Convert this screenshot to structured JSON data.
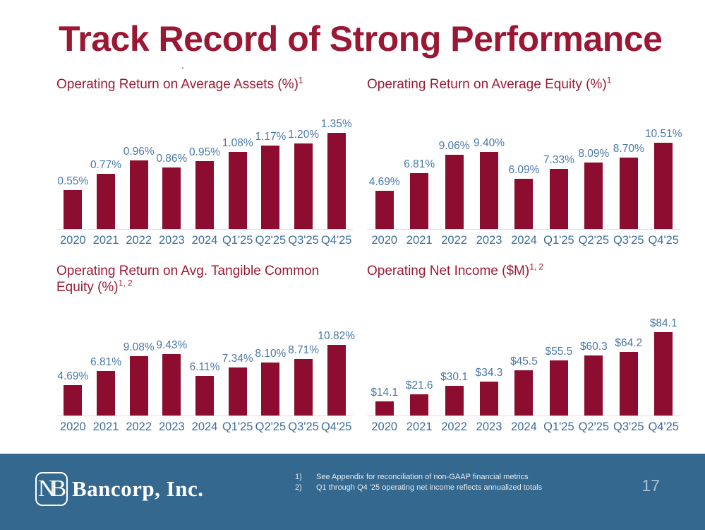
{
  "slide": {
    "title": "Track Record of Strong Performance",
    "stray_dot": "."
  },
  "chart_data": [
    {
      "type": "bar",
      "title": "Operating Return on Average Assets (%)",
      "title_sup": "1",
      "categories": [
        "2020",
        "2021",
        "2022",
        "2023",
        "2024",
        "Q1'25",
        "Q2'25",
        "Q3'25",
        "Q4'25"
      ],
      "values": [
        0.55,
        0.77,
        0.96,
        0.86,
        0.95,
        1.08,
        1.17,
        1.2,
        1.35
      ],
      "labels": [
        "0.55%",
        "0.77%",
        "0.96%",
        "0.86%",
        "0.95%",
        "1.08%",
        "1.17%",
        "1.20%",
        "1.35%"
      ],
      "xlabel": "",
      "ylabel": "",
      "ylim": [
        0,
        1.5
      ],
      "grid": false,
      "legend": false
    },
    {
      "type": "bar",
      "title": "Operating Return on Average Equity (%)",
      "title_sup": "1",
      "categories": [
        "2020",
        "2021",
        "2022",
        "2023",
        "2024",
        "Q1'25",
        "Q2'25",
        "Q3'25",
        "Q4'25"
      ],
      "values": [
        4.69,
        6.81,
        9.06,
        9.4,
        6.09,
        7.33,
        8.09,
        8.7,
        10.51
      ],
      "labels": [
        "4.69%",
        "6.81%",
        "9.06%",
        "9.40%",
        "6.09%",
        "7.33%",
        "8.09%",
        "8.70%",
        "10.51%"
      ],
      "xlabel": "",
      "ylabel": "",
      "ylim": [
        0,
        11.5
      ],
      "grid": false,
      "legend": false
    },
    {
      "type": "bar",
      "title": "Operating Return on Avg. Tangible Common Equity (%)",
      "title_sup": "1, 2",
      "categories": [
        "2020",
        "2021",
        "2022",
        "2023",
        "2024",
        "Q1'25",
        "Q2'25",
        "Q3'25",
        "Q4'25"
      ],
      "values": [
        4.69,
        6.81,
        9.08,
        9.43,
        6.11,
        7.34,
        8.1,
        8.71,
        10.82
      ],
      "labels": [
        "4.69%",
        "6.81%",
        "9.08%",
        "9.43%",
        "6.11%",
        "7.34%",
        "8.10%",
        "8.71%",
        "10.82%"
      ],
      "xlabel": "",
      "ylabel": "",
      "ylim": [
        0,
        11.5
      ],
      "grid": false,
      "legend": false
    },
    {
      "type": "bar",
      "title": "Operating Net Income ($M)",
      "title_sup": "1, 2",
      "categories": [
        "2020",
        "2021",
        "2022",
        "2023",
        "2024",
        "Q1'25",
        "Q2'25",
        "Q3'25",
        "Q4'25"
      ],
      "values": [
        14.1,
        21.6,
        30.1,
        34.3,
        45.5,
        55.5,
        60.3,
        64.2,
        84.1
      ],
      "labels": [
        "$14.1",
        "$21.6",
        "$30.1",
        "$34.3",
        "$45.5",
        "$55.5",
        "$60.3",
        "$64.2",
        "$84.1"
      ],
      "xlabel": "",
      "ylabel": "",
      "ylim": [
        0,
        90
      ],
      "grid": false,
      "legend": false
    }
  ],
  "footer": {
    "logo_mark": "NB",
    "logo_text": "Bancorp, Inc.",
    "footnotes": [
      {
        "num": "1)",
        "text": "See Appendix for reconciliation of non-GAAP financial metrics"
      },
      {
        "num": "2)",
        "text": "Q1 through Q4 '25 operating net income reflects annualized totals"
      }
    ],
    "page_number": "17"
  },
  "colors": {
    "title": "#9A1833",
    "chart_title": "#9C1B35",
    "bar": "#8C0D2F",
    "data_label": "#4878A8",
    "axis_label": "#3E6D9B",
    "baseline": "#F2D4DB",
    "footer_bg": "#35688E",
    "footer_text": "#E3EBF1",
    "page_number": "#A9C3D6"
  }
}
